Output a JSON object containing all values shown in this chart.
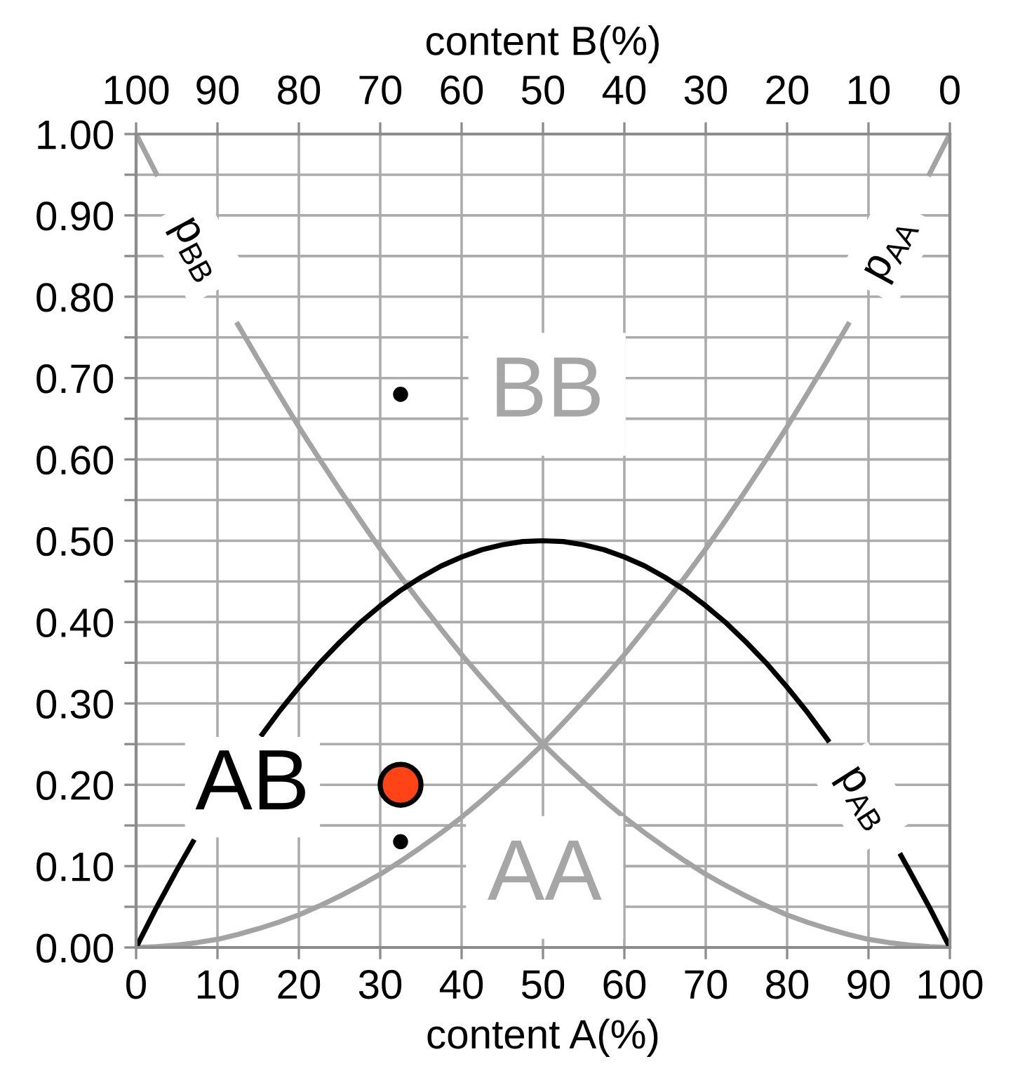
{
  "chart_data": {
    "type": "line",
    "xlabel": "content A(%)",
    "x2label": "content B(%)",
    "xlim": [
      0,
      100
    ],
    "xticks": [
      0,
      10,
      20,
      30,
      40,
      50,
      60,
      70,
      80,
      90,
      100
    ],
    "x2lim": [
      100,
      0
    ],
    "x2ticks": [
      100,
      90,
      80,
      70,
      60,
      50,
      40,
      30,
      20,
      10,
      0
    ],
    "ylim": [
      0,
      1
    ],
    "yticks": [
      {
        "value": 0,
        "label": "0.00"
      },
      {
        "value": 0.05,
        "label": null
      },
      {
        "value": 0.1,
        "label": "0.10"
      },
      {
        "value": 0.15,
        "label": null
      },
      {
        "value": 0.2,
        "label": "0.20"
      },
      {
        "value": 0.25,
        "label": null
      },
      {
        "value": 0.3,
        "label": "0.30"
      },
      {
        "value": 0.35,
        "label": null
      },
      {
        "value": 0.4,
        "label": "0.40"
      },
      {
        "value": 0.45,
        "label": null
      },
      {
        "value": 0.5,
        "label": "0.50"
      },
      {
        "value": 0.55,
        "label": null
      },
      {
        "value": 0.6,
        "label": "0.60"
      },
      {
        "value": 0.65,
        "label": null
      },
      {
        "value": 0.7,
        "label": "0.70"
      },
      {
        "value": 0.75,
        "label": null
      },
      {
        "value": 0.8,
        "label": "0.80"
      },
      {
        "value": 0.85,
        "label": null
      },
      {
        "value": 0.9,
        "label": "0.90"
      },
      {
        "value": 0.95,
        "label": null
      },
      {
        "value": 1,
        "label": "1.00"
      }
    ],
    "grid": true,
    "series": [
      {
        "name": "p$_{BB}$",
        "color": "#a3a3a3",
        "x": [
          0,
          2.5,
          7.5,
          12.5,
          15,
          17.5,
          20,
          22.5,
          25,
          27.5,
          30,
          32.5,
          35,
          37.5,
          40,
          42.5,
          45,
          47.5,
          50,
          52.5,
          55,
          57.5,
          60,
          62.5,
          65,
          67.5,
          70,
          72.5,
          75,
          77.5,
          80,
          82.5,
          85,
          87.5,
          90,
          92.5,
          95,
          97.5,
          100
        ],
        "values": [
          1.0,
          0.951,
          null,
          0.766,
          0.723,
          0.681,
          0.64,
          0.601,
          0.563,
          0.526,
          0.49,
          0.456,
          0.423,
          0.391,
          0.36,
          0.331,
          0.303,
          0.276,
          0.25,
          0.226,
          0.203,
          0.181,
          0.16,
          0.141,
          0.123,
          0.106,
          0.09,
          0.076,
          0.063,
          0.051,
          0.04,
          0.031,
          0.023,
          0.016,
          0.01,
          0.006,
          0.003,
          0.001,
          0.0
        ]
      },
      {
        "name": "p$_{AA}$",
        "color": "#a3a3a3",
        "x": [
          0,
          2.5,
          5,
          7.5,
          10,
          12.5,
          15,
          17.5,
          20,
          22.5,
          25,
          27.5,
          30,
          32.5,
          35,
          37.5,
          40,
          42.5,
          45,
          47.5,
          50,
          52.5,
          55,
          57.5,
          60,
          62.5,
          65,
          67.5,
          70,
          72.5,
          75,
          77.5,
          80,
          82.5,
          85,
          87.5,
          92.5,
          97.5,
          100
        ],
        "values": [
          0.0,
          0.001,
          0.003,
          0.006,
          0.01,
          0.016,
          0.023,
          0.031,
          0.04,
          0.051,
          0.063,
          0.076,
          0.09,
          0.106,
          0.123,
          0.141,
          0.16,
          0.181,
          0.203,
          0.226,
          0.25,
          0.276,
          0.303,
          0.331,
          0.36,
          0.391,
          0.423,
          0.456,
          0.49,
          0.526,
          0.563,
          0.601,
          0.64,
          0.681,
          0.723,
          0.766,
          null,
          0.951,
          1.0
        ]
      },
      {
        "name": "p$_{AB}$",
        "color": "#000000",
        "x": [
          0,
          2.5,
          5,
          7,
          11,
          15.5,
          17.5,
          20,
          22.5,
          25,
          27.5,
          30,
          32.5,
          35,
          37.5,
          40,
          42.5,
          45,
          47.5,
          50,
          52.5,
          55,
          57.5,
          60,
          62.5,
          65,
          67.5,
          70,
          72.5,
          75,
          77.5,
          80,
          82.5,
          85,
          90,
          94,
          95,
          97.5,
          100
        ],
        "values": [
          0.0,
          0.049,
          0.095,
          0.13,
          null,
          0.262,
          0.289,
          0.32,
          0.349,
          0.375,
          0.399,
          0.42,
          0.439,
          0.455,
          0.469,
          0.48,
          0.489,
          0.495,
          0.499,
          0.5,
          0.499,
          0.495,
          0.489,
          0.48,
          0.469,
          0.455,
          0.439,
          0.42,
          0.399,
          0.375,
          0.349,
          0.32,
          0.289,
          0.255,
          null,
          0.113,
          0.095,
          0.049,
          0.0
        ]
      },
      {
        "type": "scatter",
        "marker": "circle",
        "color": "#000000",
        "x": [
          32.5
        ],
        "values": [
          0.68
        ]
      },
      {
        "type": "scatter",
        "marker": "circle",
        "color": "#000000",
        "x": [
          32.5
        ],
        "values": [
          0.13
        ]
      },
      {
        "type": "scatter",
        "marker": "circle",
        "color": "#fe4317",
        "x": [
          32.5
        ],
        "values": [
          0.2
        ]
      }
    ],
    "annotations": [
      "BB",
      "AA",
      "AB"
    ]
  }
}
